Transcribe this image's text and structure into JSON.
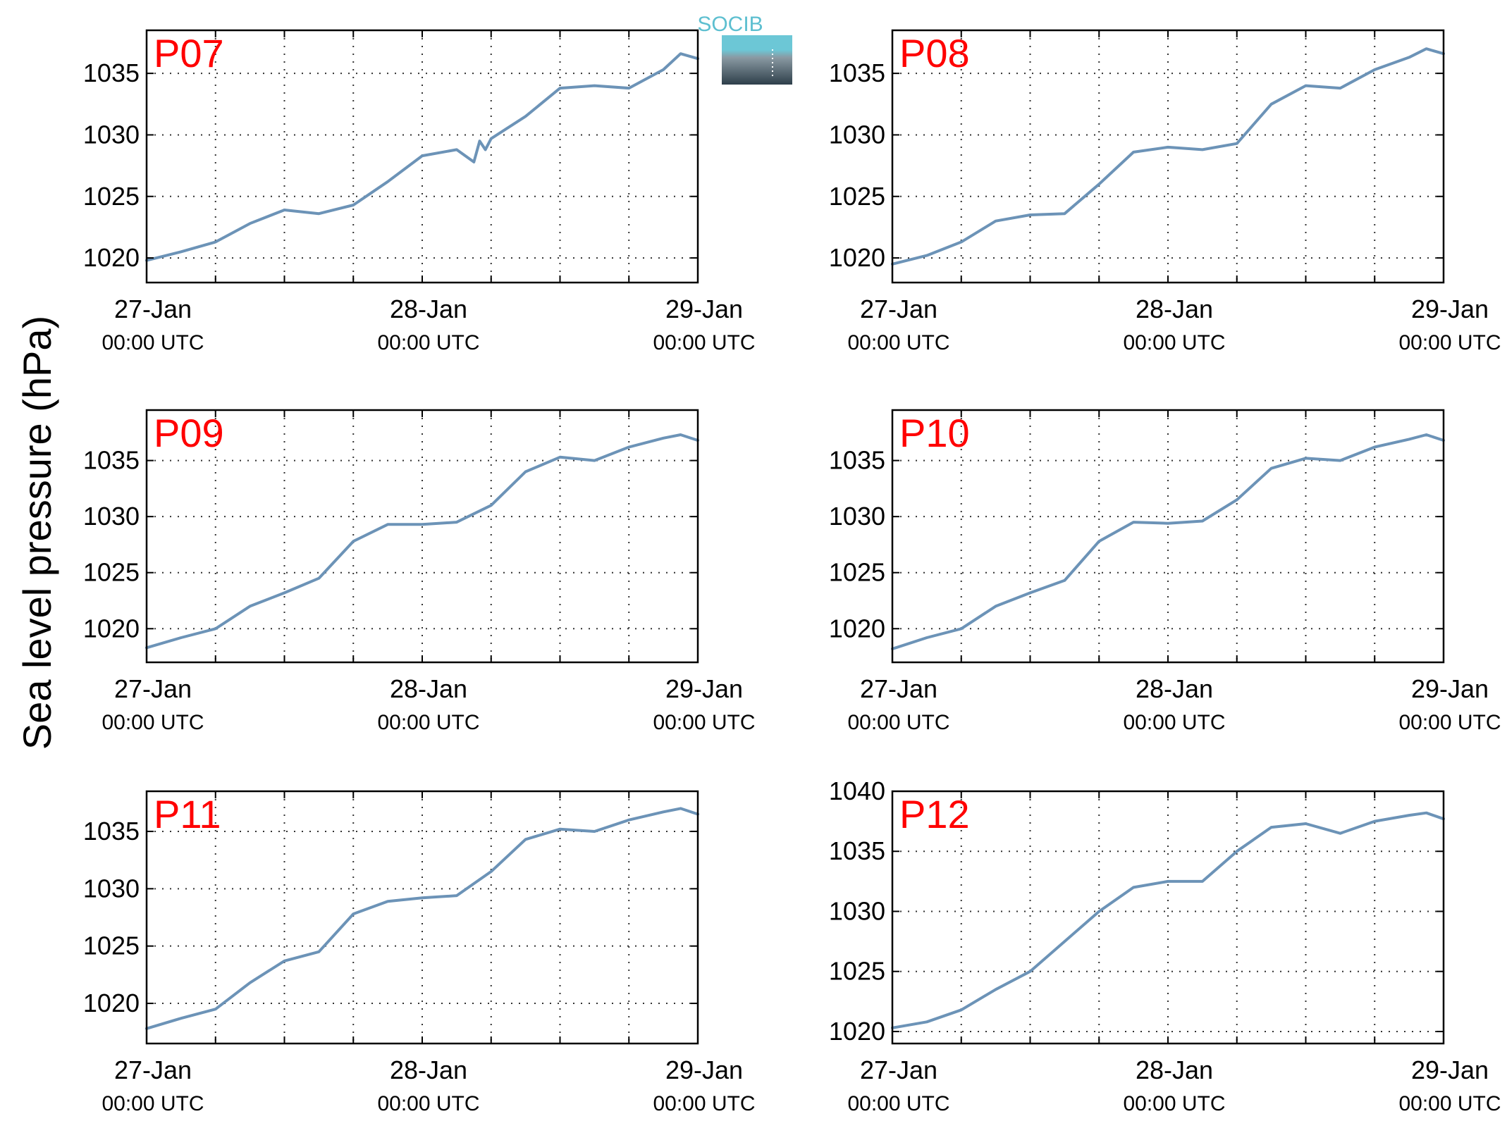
{
  "figure": {
    "ylabel": "Sea level pressure (hPa)",
    "line_color": "#6c93b7",
    "label_color": "#ff0000",
    "logo_text": "SOCIB",
    "logo_colors": {
      "text": "#5dbfd0",
      "top": "#6cc7d6",
      "bottom": "#2e3f4a"
    }
  },
  "chart_data": [
    {
      "type": "line",
      "panel": "P07",
      "x_ticks": [
        {
          "main": "27-Jan",
          "sub": "00:00 UTC"
        },
        {
          "main": "28-Jan",
          "sub": "00:00 UTC"
        },
        {
          "main": "29-Jan",
          "sub": "00:00 UTC"
        }
      ],
      "xlim": [
        "27-Jan 00:00",
        "29-Jan 00:00"
      ],
      "grid_x_hours": [
        0,
        6,
        12,
        18,
        24,
        30,
        36,
        42,
        48
      ],
      "ylim": [
        1018,
        1038.5
      ],
      "yticks": [
        1020,
        1025,
        1030,
        1035
      ],
      "grid": true,
      "x": [
        "27-Jan 00:00",
        "27-Jan 03:00",
        "27-Jan 06:00",
        "27-Jan 09:00",
        "27-Jan 12:00",
        "27-Jan 15:00",
        "27-Jan 18:00",
        "27-Jan 21:00",
        "28-Jan 00:00",
        "28-Jan 03:00",
        "28-Jan 04:30",
        "28-Jan 05:00",
        "28-Jan 05:30",
        "28-Jan 06:00",
        "28-Jan 09:00",
        "28-Jan 12:00",
        "28-Jan 15:00",
        "28-Jan 18:00",
        "28-Jan 21:00",
        "28-Jan 22:30",
        "29-Jan 00:00"
      ],
      "y": [
        1019.8,
        1020.5,
        1021.3,
        1022.8,
        1023.9,
        1023.6,
        1024.3,
        1026.2,
        1028.3,
        1028.8,
        1027.8,
        1029.5,
        1028.8,
        1029.7,
        1031.5,
        1033.8,
        1034.0,
        1033.8,
        1035.3,
        1036.6,
        1036.2
      ]
    },
    {
      "type": "line",
      "panel": "P08",
      "x_ticks": [
        {
          "main": "27-Jan",
          "sub": "00:00 UTC"
        },
        {
          "main": "28-Jan",
          "sub": "00:00 UTC"
        },
        {
          "main": "29-Jan",
          "sub": "00:00 UTC"
        }
      ],
      "xlim": [
        "27-Jan 00:00",
        "29-Jan 00:00"
      ],
      "grid_x_hours": [
        0,
        6,
        12,
        18,
        24,
        30,
        36,
        42,
        48
      ],
      "ylim": [
        1018,
        1038.5
      ],
      "yticks": [
        1020,
        1025,
        1030,
        1035
      ],
      "grid": true,
      "x": [
        "27-Jan 00:00",
        "27-Jan 03:00",
        "27-Jan 06:00",
        "27-Jan 09:00",
        "27-Jan 12:00",
        "27-Jan 15:00",
        "27-Jan 18:00",
        "27-Jan 21:00",
        "28-Jan 00:00",
        "28-Jan 03:00",
        "28-Jan 06:00",
        "28-Jan 09:00",
        "28-Jan 12:00",
        "28-Jan 15:00",
        "28-Jan 18:00",
        "28-Jan 21:00",
        "28-Jan 22:30",
        "29-Jan 00:00"
      ],
      "y": [
        1019.5,
        1020.2,
        1021.3,
        1023.0,
        1023.5,
        1023.6,
        1026.0,
        1028.6,
        1029.0,
        1028.8,
        1029.3,
        1032.5,
        1034.0,
        1033.8,
        1035.3,
        1036.3,
        1037.0,
        1036.6
      ]
    },
    {
      "type": "line",
      "panel": "P09",
      "x_ticks": [
        {
          "main": "27-Jan",
          "sub": "00:00 UTC"
        },
        {
          "main": "28-Jan",
          "sub": "00:00 UTC"
        },
        {
          "main": "29-Jan",
          "sub": "00:00 UTC"
        }
      ],
      "xlim": [
        "27-Jan 00:00",
        "29-Jan 00:00"
      ],
      "grid_x_hours": [
        0,
        6,
        12,
        18,
        24,
        30,
        36,
        42,
        48
      ],
      "ylim": [
        1017,
        1039.5
      ],
      "yticks": [
        1020,
        1025,
        1030,
        1035
      ],
      "grid": true,
      "x": [
        "27-Jan 00:00",
        "27-Jan 03:00",
        "27-Jan 06:00",
        "27-Jan 09:00",
        "27-Jan 12:00",
        "27-Jan 15:00",
        "27-Jan 18:00",
        "27-Jan 21:00",
        "28-Jan 00:00",
        "28-Jan 03:00",
        "28-Jan 06:00",
        "28-Jan 09:00",
        "28-Jan 12:00",
        "28-Jan 15:00",
        "28-Jan 18:00",
        "28-Jan 21:00",
        "28-Jan 22:30",
        "29-Jan 00:00"
      ],
      "y": [
        1018.3,
        1019.2,
        1020.0,
        1022.0,
        1023.2,
        1024.5,
        1027.8,
        1029.3,
        1029.3,
        1029.5,
        1031.0,
        1034.0,
        1035.3,
        1035.0,
        1036.2,
        1037.0,
        1037.3,
        1036.8
      ]
    },
    {
      "type": "line",
      "panel": "P10",
      "x_ticks": [
        {
          "main": "27-Jan",
          "sub": "00:00 UTC"
        },
        {
          "main": "28-Jan",
          "sub": "00:00 UTC"
        },
        {
          "main": "29-Jan",
          "sub": "00:00 UTC"
        }
      ],
      "xlim": [
        "27-Jan 00:00",
        "29-Jan 00:00"
      ],
      "grid_x_hours": [
        0,
        6,
        12,
        18,
        24,
        30,
        36,
        42,
        48
      ],
      "ylim": [
        1017,
        1039.5
      ],
      "yticks": [
        1020,
        1025,
        1030,
        1035
      ],
      "grid": true,
      "x": [
        "27-Jan 00:00",
        "27-Jan 03:00",
        "27-Jan 06:00",
        "27-Jan 09:00",
        "27-Jan 12:00",
        "27-Jan 15:00",
        "27-Jan 18:00",
        "27-Jan 21:00",
        "28-Jan 00:00",
        "28-Jan 03:00",
        "28-Jan 06:00",
        "28-Jan 09:00",
        "28-Jan 12:00",
        "28-Jan 15:00",
        "28-Jan 18:00",
        "28-Jan 21:00",
        "28-Jan 22:30",
        "29-Jan 00:00"
      ],
      "y": [
        1018.2,
        1019.2,
        1020.0,
        1022.0,
        1023.2,
        1024.3,
        1027.8,
        1029.5,
        1029.4,
        1029.6,
        1031.5,
        1034.3,
        1035.2,
        1035.0,
        1036.2,
        1036.9,
        1037.3,
        1036.8
      ]
    },
    {
      "type": "line",
      "panel": "P11",
      "x_ticks": [
        {
          "main": "27-Jan",
          "sub": "00:00 UTC"
        },
        {
          "main": "28-Jan",
          "sub": "00:00 UTC"
        },
        {
          "main": "29-Jan",
          "sub": "00:00 UTC"
        }
      ],
      "xlim": [
        "27-Jan 00:00",
        "29-Jan 00:00"
      ],
      "grid_x_hours": [
        0,
        6,
        12,
        18,
        24,
        30,
        36,
        42,
        48
      ],
      "ylim": [
        1016.5,
        1038.5
      ],
      "yticks": [
        1020,
        1025,
        1030,
        1035
      ],
      "grid": true,
      "x": [
        "27-Jan 00:00",
        "27-Jan 03:00",
        "27-Jan 06:00",
        "27-Jan 09:00",
        "27-Jan 12:00",
        "27-Jan 15:00",
        "27-Jan 18:00",
        "27-Jan 21:00",
        "28-Jan 00:00",
        "28-Jan 03:00",
        "28-Jan 06:00",
        "28-Jan 09:00",
        "28-Jan 12:00",
        "28-Jan 15:00",
        "28-Jan 18:00",
        "28-Jan 21:00",
        "28-Jan 22:30",
        "29-Jan 00:00"
      ],
      "y": [
        1017.8,
        1018.7,
        1019.5,
        1021.8,
        1023.7,
        1024.5,
        1027.8,
        1028.9,
        1029.2,
        1029.4,
        1031.5,
        1034.3,
        1035.2,
        1035.0,
        1036.0,
        1036.7,
        1037.0,
        1036.5
      ]
    },
    {
      "type": "line",
      "panel": "P12",
      "x_ticks": [
        {
          "main": "27-Jan",
          "sub": "00:00 UTC"
        },
        {
          "main": "28-Jan",
          "sub": "00:00 UTC"
        },
        {
          "main": "29-Jan",
          "sub": "00:00 UTC"
        }
      ],
      "xlim": [
        "27-Jan 00:00",
        "29-Jan 00:00"
      ],
      "grid_x_hours": [
        0,
        6,
        12,
        18,
        24,
        30,
        36,
        42,
        48
      ],
      "ylim": [
        1019,
        1040
      ],
      "yticks": [
        1020,
        1025,
        1030,
        1035,
        1040
      ],
      "grid": true,
      "x": [
        "27-Jan 00:00",
        "27-Jan 03:00",
        "27-Jan 06:00",
        "27-Jan 09:00",
        "27-Jan 12:00",
        "27-Jan 15:00",
        "27-Jan 18:00",
        "27-Jan 21:00",
        "28-Jan 00:00",
        "28-Jan 03:00",
        "28-Jan 06:00",
        "28-Jan 09:00",
        "28-Jan 12:00",
        "28-Jan 15:00",
        "28-Jan 18:00",
        "28-Jan 21:00",
        "28-Jan 22:30",
        "29-Jan 00:00"
      ],
      "y": [
        1020.3,
        1020.8,
        1021.8,
        1023.5,
        1025.0,
        1027.5,
        1030.0,
        1032.0,
        1032.5,
        1032.5,
        1035.0,
        1037.0,
        1037.3,
        1036.5,
        1037.5,
        1038.0,
        1038.2,
        1037.7
      ]
    }
  ]
}
